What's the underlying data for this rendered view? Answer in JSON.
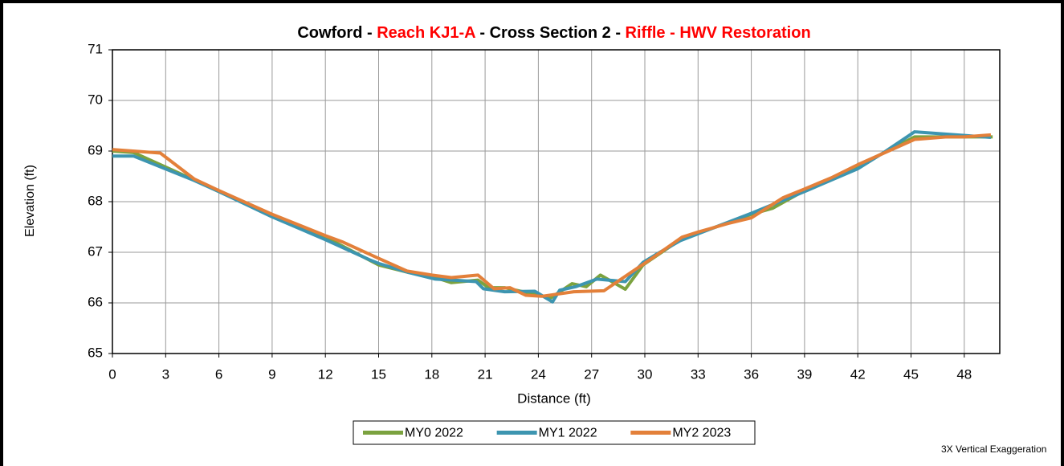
{
  "chart_data": {
    "type": "line",
    "title_parts": [
      {
        "text": "Cowford - ",
        "color": "#000000"
      },
      {
        "text": "Reach KJ1-A",
        "color": "#ff0000"
      },
      {
        "text": " - Cross Section 2 - ",
        "color": "#000000"
      },
      {
        "text": "Riffle - HWV Restoration",
        "color": "#ff0000"
      }
    ],
    "x_label": "Distance (ft)",
    "y_label": "Elevation (ft)",
    "annotation": "3X Vertical Exaggeration",
    "xlim": [
      0,
      50
    ],
    "xticks": [
      0,
      3,
      6,
      9,
      12,
      15,
      18,
      21,
      24,
      27,
      30,
      33,
      36,
      39,
      42,
      45,
      48
    ],
    "ylim": [
      65,
      71
    ],
    "yticks": [
      65,
      66,
      67,
      68,
      69,
      70,
      71
    ],
    "grid": true,
    "legend": "bottom",
    "series": [
      {
        "name": "MY0 2022",
        "color": "#7ba23f",
        "x": [
          0,
          1.2,
          4.6,
          6,
          9,
          12,
          15,
          16.7,
          18.2,
          19.1,
          20.6,
          21.2,
          22.1,
          24.7,
          25.9,
          26.7,
          27.5,
          28.9,
          29.9,
          32,
          36,
          37.2,
          39,
          42,
          45.2,
          49.6
        ],
        "values": [
          69.0,
          68.97,
          68.43,
          68.2,
          67.72,
          67.3,
          66.75,
          66.6,
          66.5,
          66.4,
          66.45,
          66.3,
          66.3,
          66.1,
          66.38,
          66.32,
          66.55,
          66.27,
          66.75,
          67.25,
          67.75,
          67.87,
          68.22,
          68.7,
          69.28,
          69.28
        ]
      },
      {
        "name": "MY1 2022",
        "color": "#3d95b0",
        "x": [
          0,
          1.2,
          4.6,
          6,
          9,
          12,
          14.5,
          15,
          16.7,
          18.2,
          19.2,
          20.5,
          20.9,
          22.1,
          23.8,
          24.8,
          25.2,
          26.1,
          27.3,
          28.9,
          29.9,
          30.6,
          32,
          36,
          39,
          42,
          43.5,
          45.2,
          49.5
        ],
        "values": [
          68.9,
          68.9,
          68.42,
          68.2,
          67.7,
          67.25,
          66.85,
          66.78,
          66.6,
          66.47,
          66.45,
          66.42,
          66.28,
          66.22,
          66.23,
          66.02,
          66.25,
          66.32,
          66.47,
          66.42,
          66.8,
          66.95,
          67.23,
          67.77,
          68.2,
          68.65,
          68.98,
          69.38,
          69.27
        ]
      },
      {
        "name": "MY2 2023",
        "color": "#e3803a",
        "x": [
          0,
          2.7,
          4.6,
          6,
          9,
          12,
          13,
          15,
          16.6,
          18,
          19.1,
          20.6,
          21.5,
          22.4,
          23.3,
          24.2,
          26,
          27.7,
          29,
          30.4,
          32.1,
          33,
          34.7,
          36,
          37.8,
          39,
          40.5,
          42,
          45.2,
          47,
          48,
          49.5
        ],
        "values": [
          69.03,
          68.96,
          68.45,
          68.22,
          67.75,
          67.33,
          67.2,
          66.88,
          66.63,
          66.55,
          66.5,
          66.55,
          66.28,
          66.3,
          66.15,
          66.13,
          66.22,
          66.24,
          66.55,
          66.88,
          67.3,
          67.4,
          67.57,
          67.68,
          68.08,
          68.25,
          68.47,
          68.73,
          69.23,
          69.28,
          69.28,
          69.32
        ]
      }
    ]
  }
}
